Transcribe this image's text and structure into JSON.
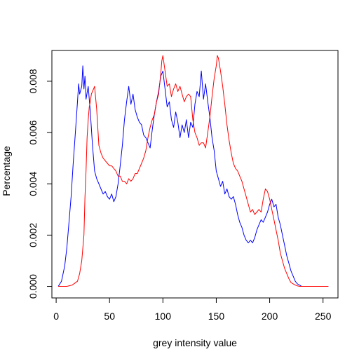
{
  "chart_data": {
    "type": "line",
    "title": "",
    "xlabel": "grey intensity value",
    "ylabel": "Percentage",
    "xlim": [
      -4,
      264
    ],
    "ylim": [
      -0.00045,
      0.0092
    ],
    "x_ticks": [
      0,
      50,
      100,
      150,
      200,
      250
    ],
    "y_ticks": [
      0.0,
      0.002,
      0.004,
      0.006,
      0.008
    ],
    "x_tick_labels": [
      "0",
      "50",
      "100",
      "150",
      "200",
      "250"
    ],
    "y_tick_labels": [
      "0.000",
      "0.002",
      "0.004",
      "0.006",
      "0.008"
    ],
    "grid": false,
    "legend": "none",
    "series": [
      {
        "color": "#0000ff",
        "x": [
          2,
          5,
          8,
          10,
          12,
          14,
          16,
          18,
          20,
          21,
          22,
          24,
          25,
          26,
          27,
          28,
          30,
          32,
          34,
          36,
          38,
          40,
          42,
          44,
          46,
          48,
          50,
          52,
          54,
          56,
          58,
          60,
          62,
          64,
          66,
          68,
          70,
          72,
          74,
          76,
          78,
          80,
          82,
          84,
          86,
          88,
          90,
          92,
          94,
          96,
          98,
          100,
          102,
          104,
          106,
          108,
          110,
          112,
          114,
          116,
          118,
          120,
          122,
          124,
          126,
          128,
          130,
          132,
          134,
          136,
          138,
          140,
          142,
          144,
          146,
          148,
          150,
          152,
          154,
          156,
          158,
          160,
          162,
          164,
          166,
          168,
          170,
          172,
          174,
          176,
          178,
          180,
          182,
          184,
          186,
          188,
          190,
          192,
          194,
          196,
          198,
          200,
          202,
          204,
          206,
          208,
          210,
          212,
          214,
          216,
          218,
          220,
          222,
          224,
          226,
          228,
          230,
          234,
          240,
          250,
          255
        ],
        "y": [
          0,
          0.0002,
          0.0008,
          0.0015,
          0.0025,
          0.0035,
          0.0048,
          0.006,
          0.0072,
          0.0079,
          0.0075,
          0.0078,
          0.0086,
          0.0077,
          0.0082,
          0.0073,
          0.0078,
          0.0068,
          0.0055,
          0.0045,
          0.0042,
          0.004,
          0.0038,
          0.0036,
          0.0037,
          0.0035,
          0.0034,
          0.0036,
          0.0033,
          0.0035,
          0.004,
          0.0047,
          0.0055,
          0.0065,
          0.0072,
          0.0078,
          0.0071,
          0.0075,
          0.0069,
          0.0066,
          0.0064,
          0.0063,
          0.0059,
          0.0058,
          0.0056,
          0.0054,
          0.0061,
          0.0067,
          0.0072,
          0.0076,
          0.0082,
          0.0084,
          0.0077,
          0.007,
          0.0072,
          0.0065,
          0.0062,
          0.0068,
          0.0064,
          0.0058,
          0.0063,
          0.006,
          0.0065,
          0.0058,
          0.0064,
          0.0062,
          0.0071,
          0.0076,
          0.0074,
          0.0084,
          0.0073,
          0.0079,
          0.0072,
          0.0066,
          0.0058,
          0.0053,
          0.0045,
          0.0042,
          0.0039,
          0.0041,
          0.0036,
          0.0038,
          0.0035,
          0.0034,
          0.0035,
          0.0032,
          0.0028,
          0.0025,
          0.0023,
          0.002,
          0.0018,
          0.0017,
          0.0018,
          0.0017,
          0.0019,
          0.0022,
          0.0024,
          0.0026,
          0.0025,
          0.0027,
          0.0029,
          0.0032,
          0.0034,
          0.0031,
          0.0032,
          0.0027,
          0.0024,
          0.002,
          0.0016,
          0.0012,
          0.0009,
          0.0006,
          0.0004,
          0.0002,
          0.0001,
          5e-05,
          0,
          0,
          0,
          0,
          0
        ]
      },
      {
        "color": "#ff0000",
        "x": [
          2,
          10,
          15,
          20,
          22,
          24,
          26,
          27,
          28,
          29,
          30,
          31,
          32,
          33,
          34,
          35,
          36,
          38,
          40,
          42,
          44,
          46,
          48,
          50,
          52,
          54,
          56,
          58,
          60,
          62,
          64,
          66,
          68,
          70,
          72,
          74,
          76,
          78,
          80,
          82,
          84,
          86,
          88,
          90,
          92,
          94,
          96,
          98,
          99,
          100,
          102,
          104,
          106,
          108,
          110,
          112,
          114,
          116,
          118,
          120,
          122,
          124,
          126,
          128,
          130,
          132,
          134,
          136,
          138,
          140,
          142,
          144,
          146,
          148,
          150,
          151,
          152,
          154,
          156,
          158,
          160,
          162,
          164,
          166,
          168,
          170,
          172,
          174,
          176,
          178,
          180,
          182,
          184,
          186,
          188,
          190,
          192,
          194,
          196,
          198,
          200,
          202,
          204,
          206,
          208,
          210,
          212,
          214,
          216,
          218,
          220,
          222,
          224,
          226,
          228,
          230,
          235,
          240,
          250,
          255
        ],
        "y": [
          0,
          0,
          5e-05,
          0.0002,
          0.0005,
          0.001,
          0.002,
          0.0035,
          0.0045,
          0.0058,
          0.0065,
          0.007,
          0.0072,
          0.0075,
          0.0076,
          0.0077,
          0.0078,
          0.0069,
          0.0055,
          0.0052,
          0.005,
          0.0049,
          0.0048,
          0.0047,
          0.0047,
          0.0046,
          0.0045,
          0.0043,
          0.0043,
          0.0041,
          0.0041,
          0.004,
          0.0042,
          0.0041,
          0.0042,
          0.0044,
          0.0044,
          0.0046,
          0.0048,
          0.005,
          0.0053,
          0.0058,
          0.0062,
          0.0065,
          0.0067,
          0.0072,
          0.0075,
          0.0083,
          0.0088,
          0.009,
          0.0084,
          0.0078,
          0.0079,
          0.0074,
          0.0077,
          0.0079,
          0.0076,
          0.0078,
          0.0075,
          0.0072,
          0.0074,
          0.0075,
          0.0074,
          0.0065,
          0.006,
          0.0058,
          0.0055,
          0.0056,
          0.0056,
          0.0054,
          0.006,
          0.0066,
          0.0074,
          0.0081,
          0.0086,
          0.009,
          0.0089,
          0.0084,
          0.0078,
          0.0071,
          0.0063,
          0.0057,
          0.0052,
          0.0048,
          0.0046,
          0.0045,
          0.0043,
          0.0041,
          0.0038,
          0.0035,
          0.0032,
          0.0029,
          0.003,
          0.0028,
          0.0029,
          0.003,
          0.0029,
          0.0034,
          0.0038,
          0.0037,
          0.0034,
          0.003,
          0.0026,
          0.0022,
          0.0018,
          0.0013,
          0.001,
          0.0007,
          0.0005,
          0.0003,
          0.00015,
          0.0001,
          5e-05,
          2e-05,
          0,
          0,
          0,
          0,
          0,
          0
        ]
      }
    ]
  }
}
